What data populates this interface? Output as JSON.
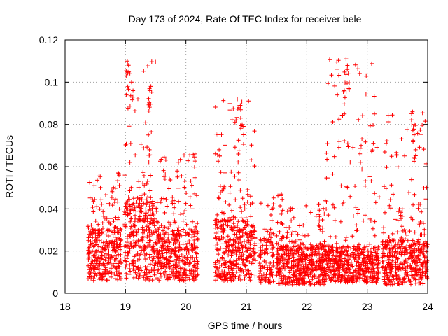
{
  "chart_data": {
    "type": "scatter",
    "title": "Day 173 of 2024, Rate Of TEC Index for receiver bele",
    "xlabel": "GPS time / hours",
    "ylabel": "ROTI / TECUs",
    "xlim": [
      18,
      24
    ],
    "ylim": [
      0,
      0.12
    ],
    "x_ticks": [
      18,
      19,
      20,
      21,
      22,
      23,
      24
    ],
    "x_tick_labels": [
      "18",
      "19",
      "20",
      "21",
      "22",
      "23",
      "24"
    ],
    "y_ticks": [
      0,
      0.02,
      0.04,
      0.06,
      0.08,
      0.1,
      0.12
    ],
    "y_tick_labels": [
      "0",
      "0.02",
      "0.04",
      "0.06",
      "0.08",
      "0.1",
      "0.12"
    ],
    "grid": true,
    "marker": "+",
    "color": "#ff0000",
    "clusters": [
      {
        "x_start": 18.38,
        "x_end": 18.93,
        "y_base_min": 0.006,
        "y_base_max": 0.03,
        "count": 330,
        "peak_max": 0.057
      },
      {
        "x_start": 18.98,
        "x_end": 19.5,
        "y_base_min": 0.006,
        "y_base_max": 0.045,
        "count": 330,
        "peak_max": 0.11
      },
      {
        "x_start": 19.5,
        "x_end": 20.2,
        "y_base_min": 0.006,
        "y_base_max": 0.03,
        "count": 420,
        "peak_max": 0.066
      },
      {
        "x_start": 20.48,
        "x_end": 21.15,
        "y_base_min": 0.006,
        "y_base_max": 0.035,
        "count": 420,
        "peak_max": 0.092
      },
      {
        "x_start": 21.2,
        "x_end": 21.45,
        "y_base_min": 0.005,
        "y_base_max": 0.025,
        "count": 110,
        "peak_max": 0.047
      },
      {
        "x_start": 21.5,
        "x_end": 22.3,
        "y_base_min": 0.004,
        "y_base_max": 0.022,
        "count": 480,
        "peak_max": 0.047
      },
      {
        "x_start": 22.3,
        "x_end": 23.2,
        "y_base_min": 0.005,
        "y_base_max": 0.022,
        "count": 540,
        "peak_max": 0.111
      },
      {
        "x_start": 23.25,
        "x_end": 24.0,
        "y_base_min": 0.004,
        "y_base_max": 0.025,
        "count": 460,
        "peak_max": 0.086
      }
    ],
    "peaks": [
      {
        "x": 19.03,
        "y": 0.11
      },
      {
        "x": 19.05,
        "y": 0.108
      },
      {
        "x": 19.1,
        "y": 0.1
      },
      {
        "x": 19.42,
        "y": 0.098
      },
      {
        "x": 19.4,
        "y": 0.096
      },
      {
        "x": 19.38,
        "y": 0.075
      },
      {
        "x": 20.85,
        "y": 0.092
      },
      {
        "x": 20.9,
        "y": 0.089
      },
      {
        "x": 20.93,
        "y": 0.08
      },
      {
        "x": 22.65,
        "y": 0.111
      },
      {
        "x": 22.67,
        "y": 0.106
      },
      {
        "x": 22.62,
        "y": 0.096
      },
      {
        "x": 22.9,
        "y": 0.07
      },
      {
        "x": 23.75,
        "y": 0.086
      },
      {
        "x": 23.78,
        "y": 0.08
      },
      {
        "x": 23.8,
        "y": 0.068
      },
      {
        "x": 18.88,
        "y": 0.057
      },
      {
        "x": 18.48,
        "y": 0.051
      },
      {
        "x": 20.15,
        "y": 0.066
      },
      {
        "x": 21.58,
        "y": 0.047
      },
      {
        "x": 22.2,
        "y": 0.042
      },
      {
        "x": 23.58,
        "y": 0.04
      }
    ]
  }
}
